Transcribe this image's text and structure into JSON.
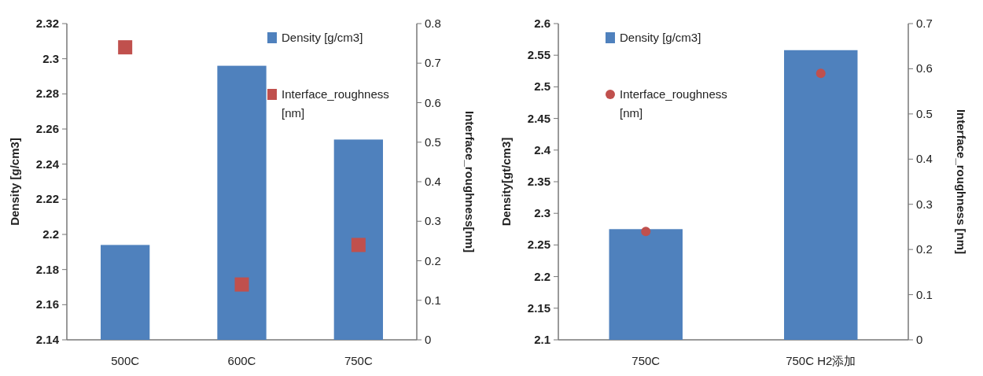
{
  "chart_data": [
    {
      "type": "bar",
      "categories": [
        "500C",
        "600C",
        "750C"
      ],
      "ylabel": "Density [g/cm3]",
      "y2label": "Interface_roughness[nm]",
      "ylim": [
        2.14,
        2.32
      ],
      "yticks": [
        2.14,
        2.16,
        2.18,
        2.2,
        2.22,
        2.24,
        2.26,
        2.28,
        2.3,
        2.32
      ],
      "y2lim": [
        0,
        0.8
      ],
      "y2ticks": [
        0,
        0.1,
        0.2,
        0.3,
        0.4,
        0.5,
        0.6,
        0.7,
        0.8
      ],
      "legend": "top right",
      "series": [
        {
          "name": "Density [g/cm3]",
          "type": "bar",
          "color": "#4f81bd",
          "values": [
            2.194,
            2.296,
            2.254
          ]
        },
        {
          "name": "Interface_roughness [nm]",
          "type": "scatter",
          "axis": "y2",
          "marker": "square",
          "color": "#c0504d",
          "values": [
            0.74,
            0.14,
            0.24
          ]
        }
      ]
    },
    {
      "type": "bar",
      "categories": [
        "750C",
        "750C H2添加"
      ],
      "ylabel": "Density[gt/cm3]",
      "y2label": "Interface_roughness [nm]",
      "ylim": [
        2.1,
        2.6
      ],
      "yticks": [
        2.1,
        2.15,
        2.2,
        2.25,
        2.3,
        2.35,
        2.4,
        2.45,
        2.5,
        2.55,
        2.6
      ],
      "y2lim": [
        0,
        0.7
      ],
      "y2ticks": [
        0,
        0.1,
        0.2,
        0.3,
        0.4,
        0.5,
        0.6,
        0.7
      ],
      "legend": "top left",
      "series": [
        {
          "name": "Density [g/cm3]",
          "type": "bar",
          "color": "#4f81bd",
          "values": [
            2.275,
            2.558
          ]
        },
        {
          "name": "Interface_roughness [nm]",
          "type": "scatter",
          "axis": "y2",
          "marker": "circle",
          "color": "#c0504d",
          "values": [
            0.24,
            0.59
          ]
        }
      ]
    }
  ]
}
